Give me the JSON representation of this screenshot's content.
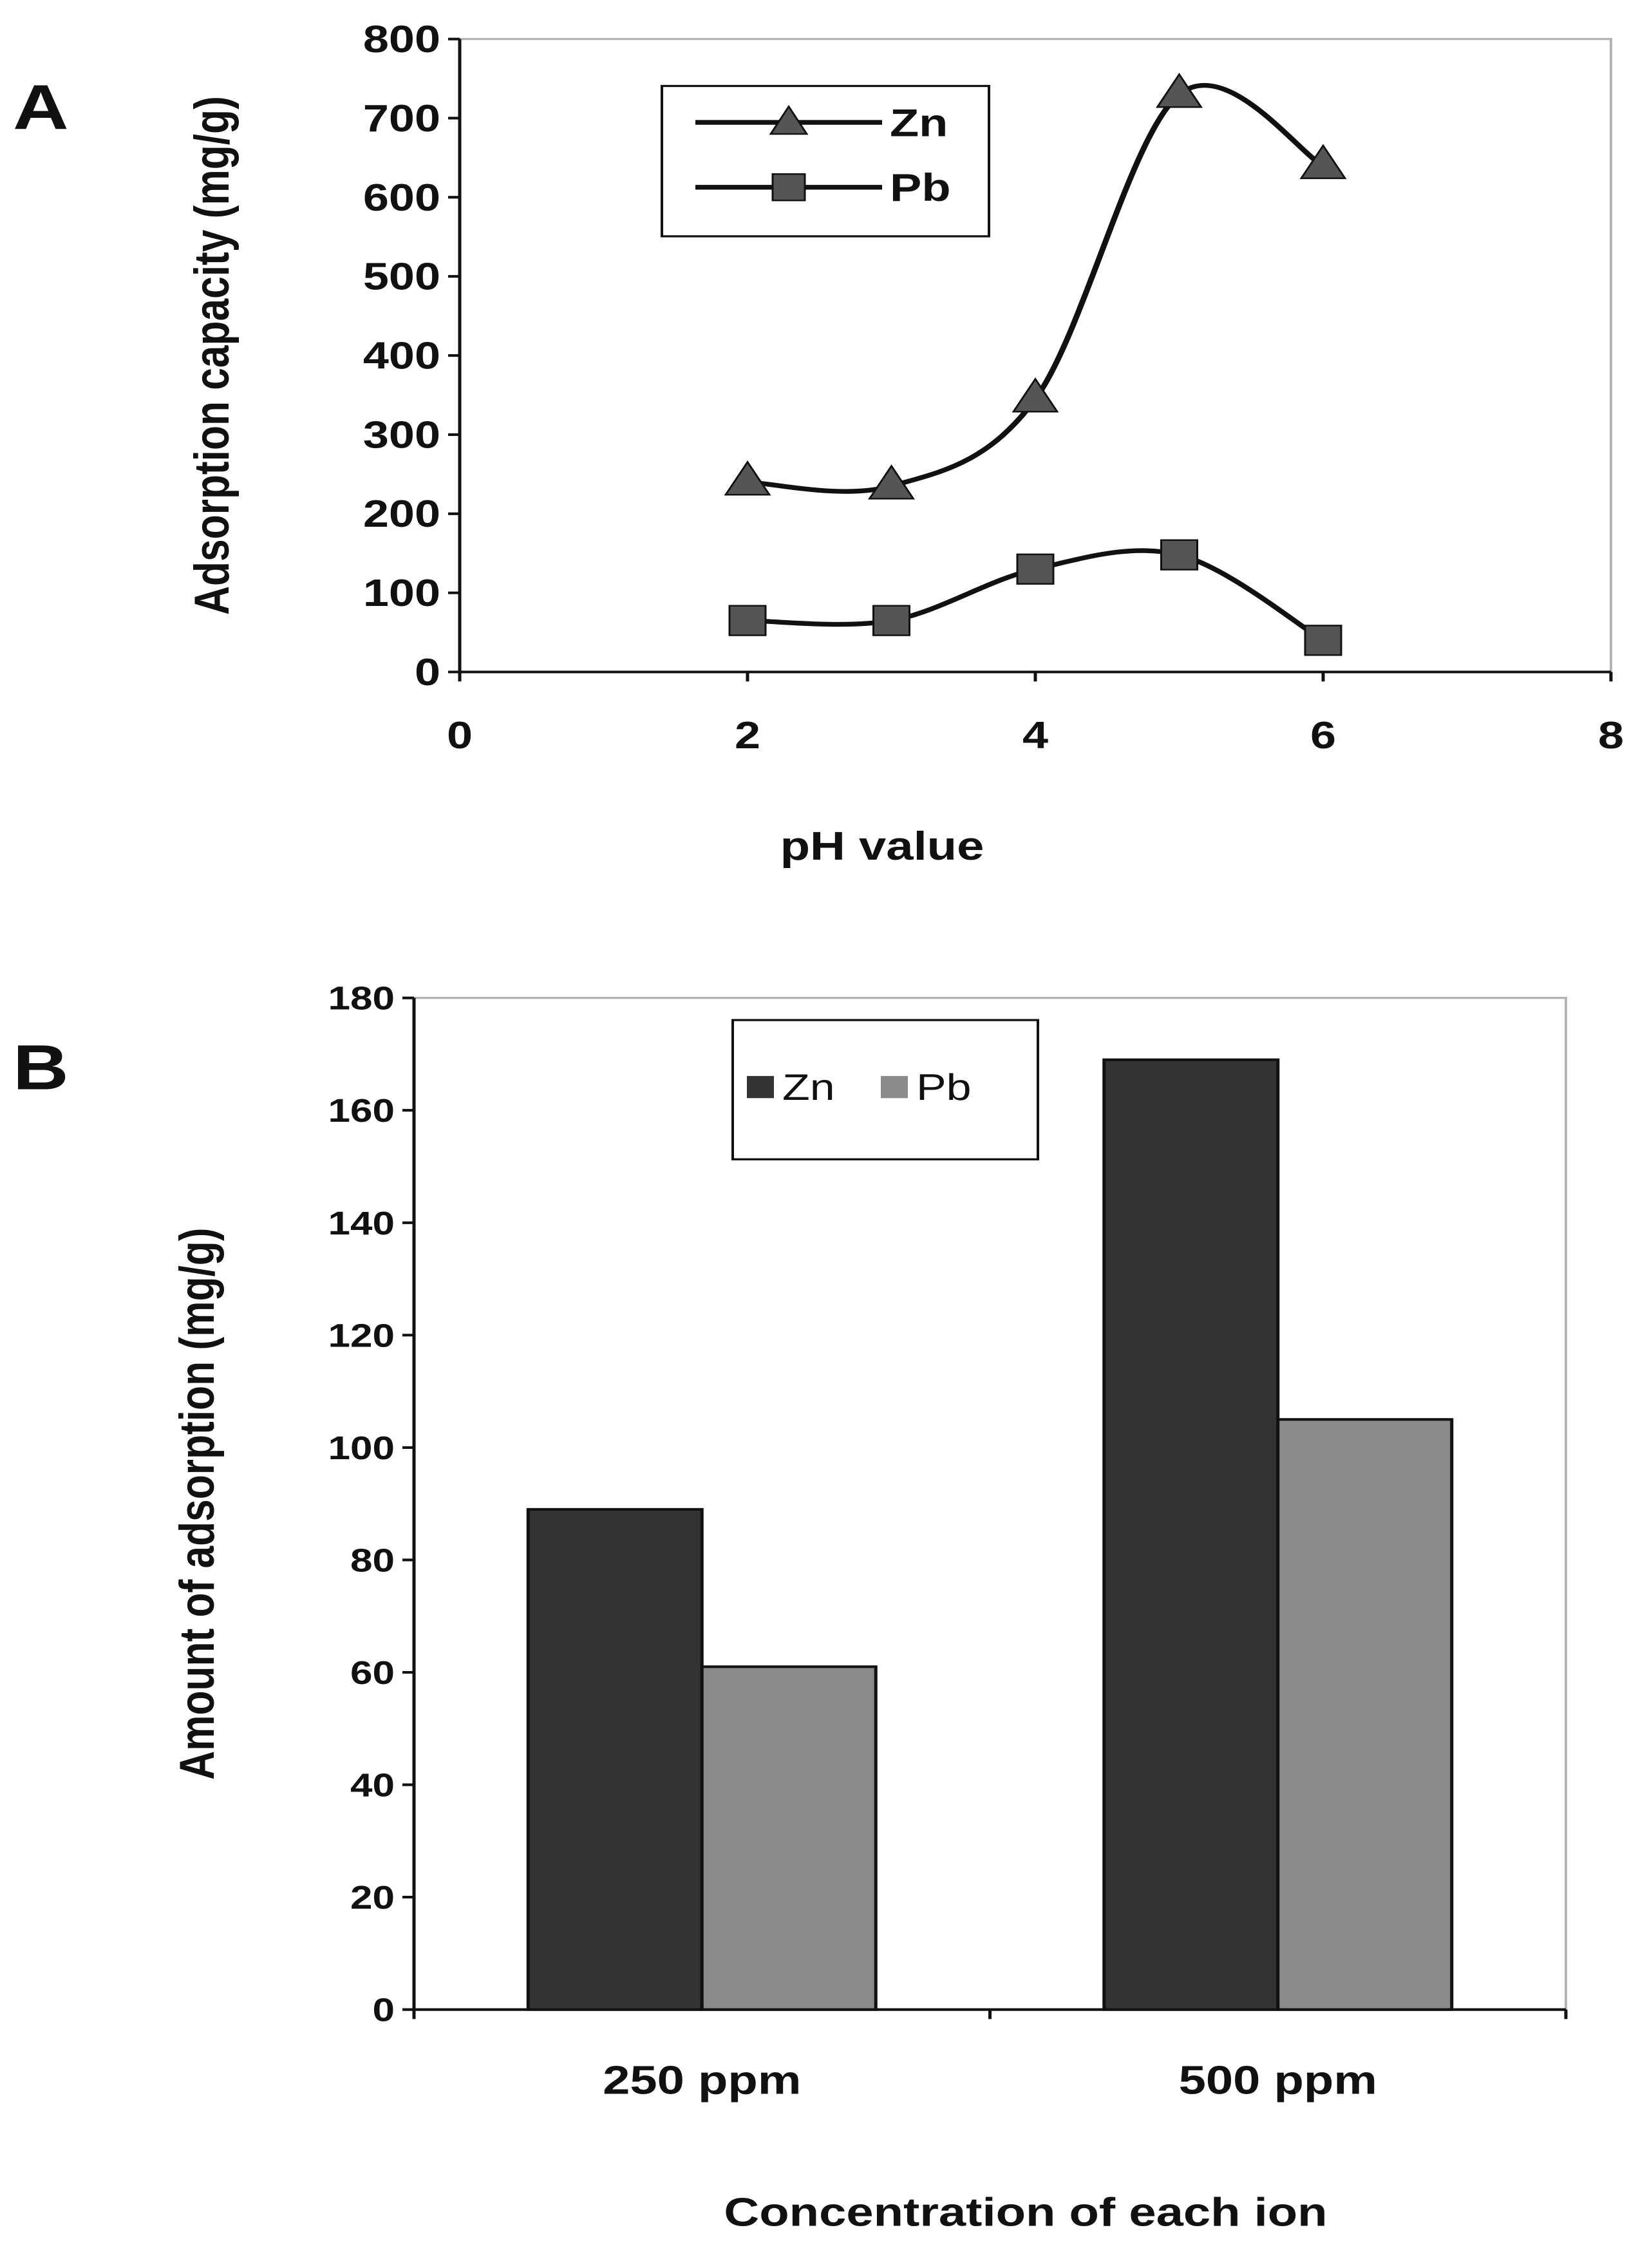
{
  "chart_data": [
    {
      "panel": "A",
      "type": "line",
      "title": "",
      "xlabel": "pH value",
      "ylabel": "Adsorption capacity (mg/g)",
      "xlim": [
        0,
        8
      ],
      "ylim": [
        0,
        800
      ],
      "xticks": [
        "0",
        "2",
        "4",
        "6",
        "8"
      ],
      "yticks": [
        "0",
        "100",
        "200",
        "300",
        "400",
        "500",
        "600",
        "700",
        "800"
      ],
      "grid": false,
      "legend_position": "top-left",
      "series": [
        {
          "name": "Zn",
          "marker": "triangle",
          "x": [
            2,
            3,
            4,
            5,
            6
          ],
          "values": [
            240,
            235,
            345,
            730,
            640
          ]
        },
        {
          "name": "Pb",
          "marker": "square",
          "x": [
            2,
            3,
            4,
            5,
            6
          ],
          "values": [
            65,
            65,
            130,
            148,
            40
          ]
        }
      ]
    },
    {
      "panel": "B",
      "type": "bar",
      "title": "",
      "xlabel": "Concentration of each ion",
      "ylabel": "Amount of adsorption (mg/g)",
      "categories": [
        "250 ppm",
        "500 ppm"
      ],
      "ylim": [
        0,
        180
      ],
      "yticks": [
        "0",
        "20",
        "40",
        "60",
        "80",
        "100",
        "120",
        "140",
        "160",
        "180"
      ],
      "grid": false,
      "legend_position": "top-center",
      "series": [
        {
          "name": "Zn",
          "color": "#333333",
          "values": [
            89,
            169
          ]
        },
        {
          "name": "Pb",
          "color": "#8a8a8a",
          "values": [
            61,
            105
          ]
        }
      ]
    }
  ]
}
